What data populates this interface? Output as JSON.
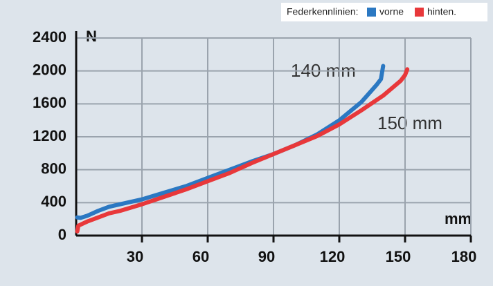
{
  "chart_data": {
    "type": "line",
    "legend_title": "Federkennlinien:",
    "y_label": "N",
    "x_label": "mm",
    "annotations": [
      "140 mm",
      "150 mm"
    ],
    "xlim": [
      0,
      180
    ],
    "ylim": [
      0,
      2400
    ],
    "xticks": [
      30,
      60,
      90,
      120,
      150,
      180
    ],
    "yticks": [
      0,
      400,
      800,
      1200,
      1600,
      2000,
      2400
    ],
    "grid": true,
    "series": [
      {
        "name": "vorne",
        "color": "#2b78c2",
        "x": [
          0.5,
          2,
          5,
          10,
          15,
          20,
          30,
          40,
          50,
          60,
          70,
          80,
          90,
          100,
          110,
          120,
          130,
          137,
          139,
          140
        ],
        "values": [
          220,
          215,
          240,
          300,
          350,
          380,
          440,
          520,
          600,
          700,
          800,
          900,
          990,
          1100,
          1230,
          1400,
          1620,
          1830,
          1900,
          2060
        ]
      },
      {
        "name": "hinten.",
        "color": "#e8383a",
        "x": [
          0.5,
          1,
          5,
          10,
          15,
          20,
          30,
          40,
          50,
          60,
          70,
          80,
          90,
          100,
          110,
          120,
          130,
          140,
          148,
          150,
          151
        ],
        "values": [
          50,
          120,
          170,
          220,
          270,
          300,
          380,
          470,
          560,
          660,
          760,
          880,
          990,
          1100,
          1210,
          1350,
          1520,
          1700,
          1880,
          1950,
          2020
        ]
      }
    ]
  }
}
